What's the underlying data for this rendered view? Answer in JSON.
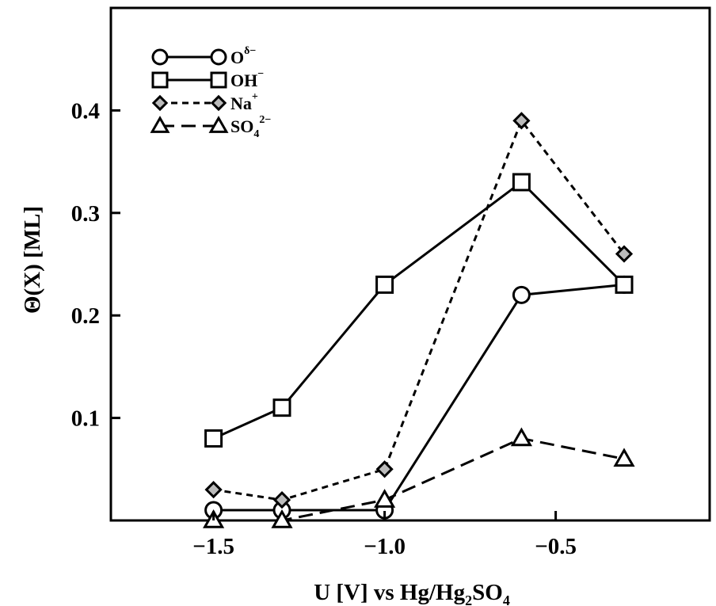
{
  "chart_data": {
    "type": "line",
    "xlabel": "U [V] vs Hg/Hg₂SO₄",
    "ylabel": "Θ(X) [ML]",
    "xlim": [
      -1.8,
      -0.05
    ],
    "ylim": [
      0,
      0.5
    ],
    "x_ticks": [
      {
        "value": -1.5,
        "label": "−1.5"
      },
      {
        "value": -1.0,
        "label": "−1.0"
      },
      {
        "value": -0.5,
        "label": "−0.5"
      }
    ],
    "y_ticks": [
      {
        "value": 0.1,
        "label": "0.1"
      },
      {
        "value": 0.2,
        "label": "0.2"
      },
      {
        "value": 0.3,
        "label": "0.3"
      },
      {
        "value": 0.4,
        "label": "0.4"
      }
    ],
    "grid": false,
    "legend_position": "top-left",
    "series": [
      {
        "name": "O",
        "name_sup": "δ−",
        "marker": "circle",
        "dash": "solid",
        "x": [
          -1.5,
          -1.3,
          -1.0,
          -0.6,
          -0.3
        ],
        "y": [
          0.01,
          0.01,
          0.01,
          0.22,
          0.23
        ]
      },
      {
        "name": "OH",
        "name_sup": "−",
        "marker": "square",
        "dash": "solid",
        "x": [
          -1.5,
          -1.3,
          -1.0,
          -0.6,
          -0.3
        ],
        "y": [
          0.08,
          0.11,
          0.23,
          0.33,
          0.23
        ]
      },
      {
        "name": "Na",
        "name_sup": "+",
        "marker": "diamond",
        "dash": "dotted",
        "x": [
          -1.5,
          -1.3,
          -1.0,
          -0.6,
          -0.3
        ],
        "y": [
          0.03,
          0.02,
          0.05,
          0.39,
          0.26
        ]
      },
      {
        "name": "SO",
        "name_sub": "4",
        "name_sup": "2−",
        "marker": "triangle",
        "dash": "dashed",
        "x": [
          -1.5,
          -1.3,
          -1.0,
          -0.6,
          -0.3
        ],
        "y": [
          0.0,
          0.0,
          0.02,
          0.08,
          0.06
        ]
      }
    ]
  }
}
